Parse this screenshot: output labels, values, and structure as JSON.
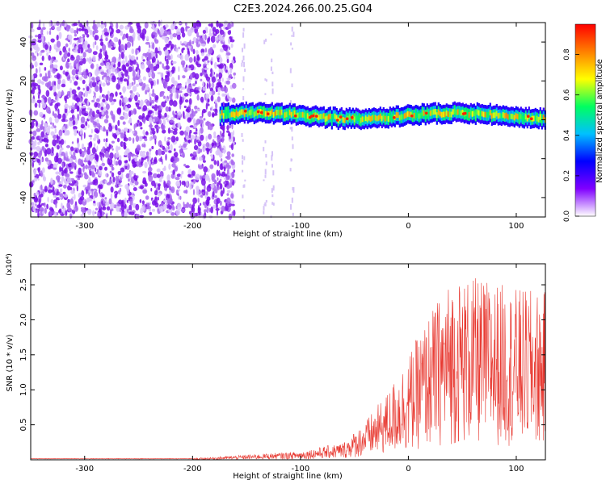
{
  "figure_title": "C2E3.2024.266.00.25.G04",
  "chart_data": [
    {
      "type": "heatmap",
      "title": "",
      "xlabel": "Height of straight line (km)",
      "ylabel": "Frequency (Hz)",
      "xlim": [
        -350,
        127
      ],
      "ylim": [
        -50,
        50
      ],
      "xticks": [
        -300,
        -200,
        -100,
        0,
        100
      ],
      "yticks": [
        -40,
        -20,
        0,
        20,
        40
      ],
      "colorbar": {
        "label": "Normalized spectral amplitude",
        "range": [
          0.0,
          0.95
        ],
        "ticks": [
          "0.0",
          "0.2",
          "0.4",
          "0.6",
          "0.8"
        ]
      },
      "regions": [
        {
          "name": "noise",
          "x_range": [
            -350,
            -170
          ],
          "y_range": [
            -50,
            50
          ],
          "amplitude": 0.15
        },
        {
          "name": "signal-band",
          "x_range": [
            -175,
            127
          ],
          "center_hz": 2,
          "width_hz": 10,
          "amplitude": 0.6
        }
      ],
      "colormap": [
        "#ffffff",
        "#8000ff",
        "#0000ff",
        "#00c0ff",
        "#00ff60",
        "#ffff00",
        "#ff8000",
        "#ff0000"
      ]
    },
    {
      "type": "line",
      "title": "",
      "xlabel": "Height of straight line (km)",
      "ylabel": "SNR (10 * v/v)",
      "y_multiplier": "(x10⁴)",
      "xlim": [
        -350,
        127
      ],
      "ylim": [
        0,
        2.8
      ],
      "xticks": [
        -300,
        -200,
        -100,
        0,
        100
      ],
      "yticks": [
        0.5,
        1.0,
        1.5,
        2.0,
        2.5
      ],
      "series": [
        {
          "color": "#e83a32",
          "envelope": {
            "x": [
              -350,
              -200,
              -160,
              -120,
              -100,
              -60,
              -40,
              -20,
              0,
              20,
              40,
              60,
              80,
              100,
              127
            ],
            "y": [
              0.02,
              0.02,
              0.06,
              0.1,
              0.12,
              0.25,
              0.55,
              0.95,
              1.5,
              2.1,
              2.6,
              2.6,
              2.55,
              2.45,
              2.4
            ]
          }
        }
      ]
    }
  ]
}
